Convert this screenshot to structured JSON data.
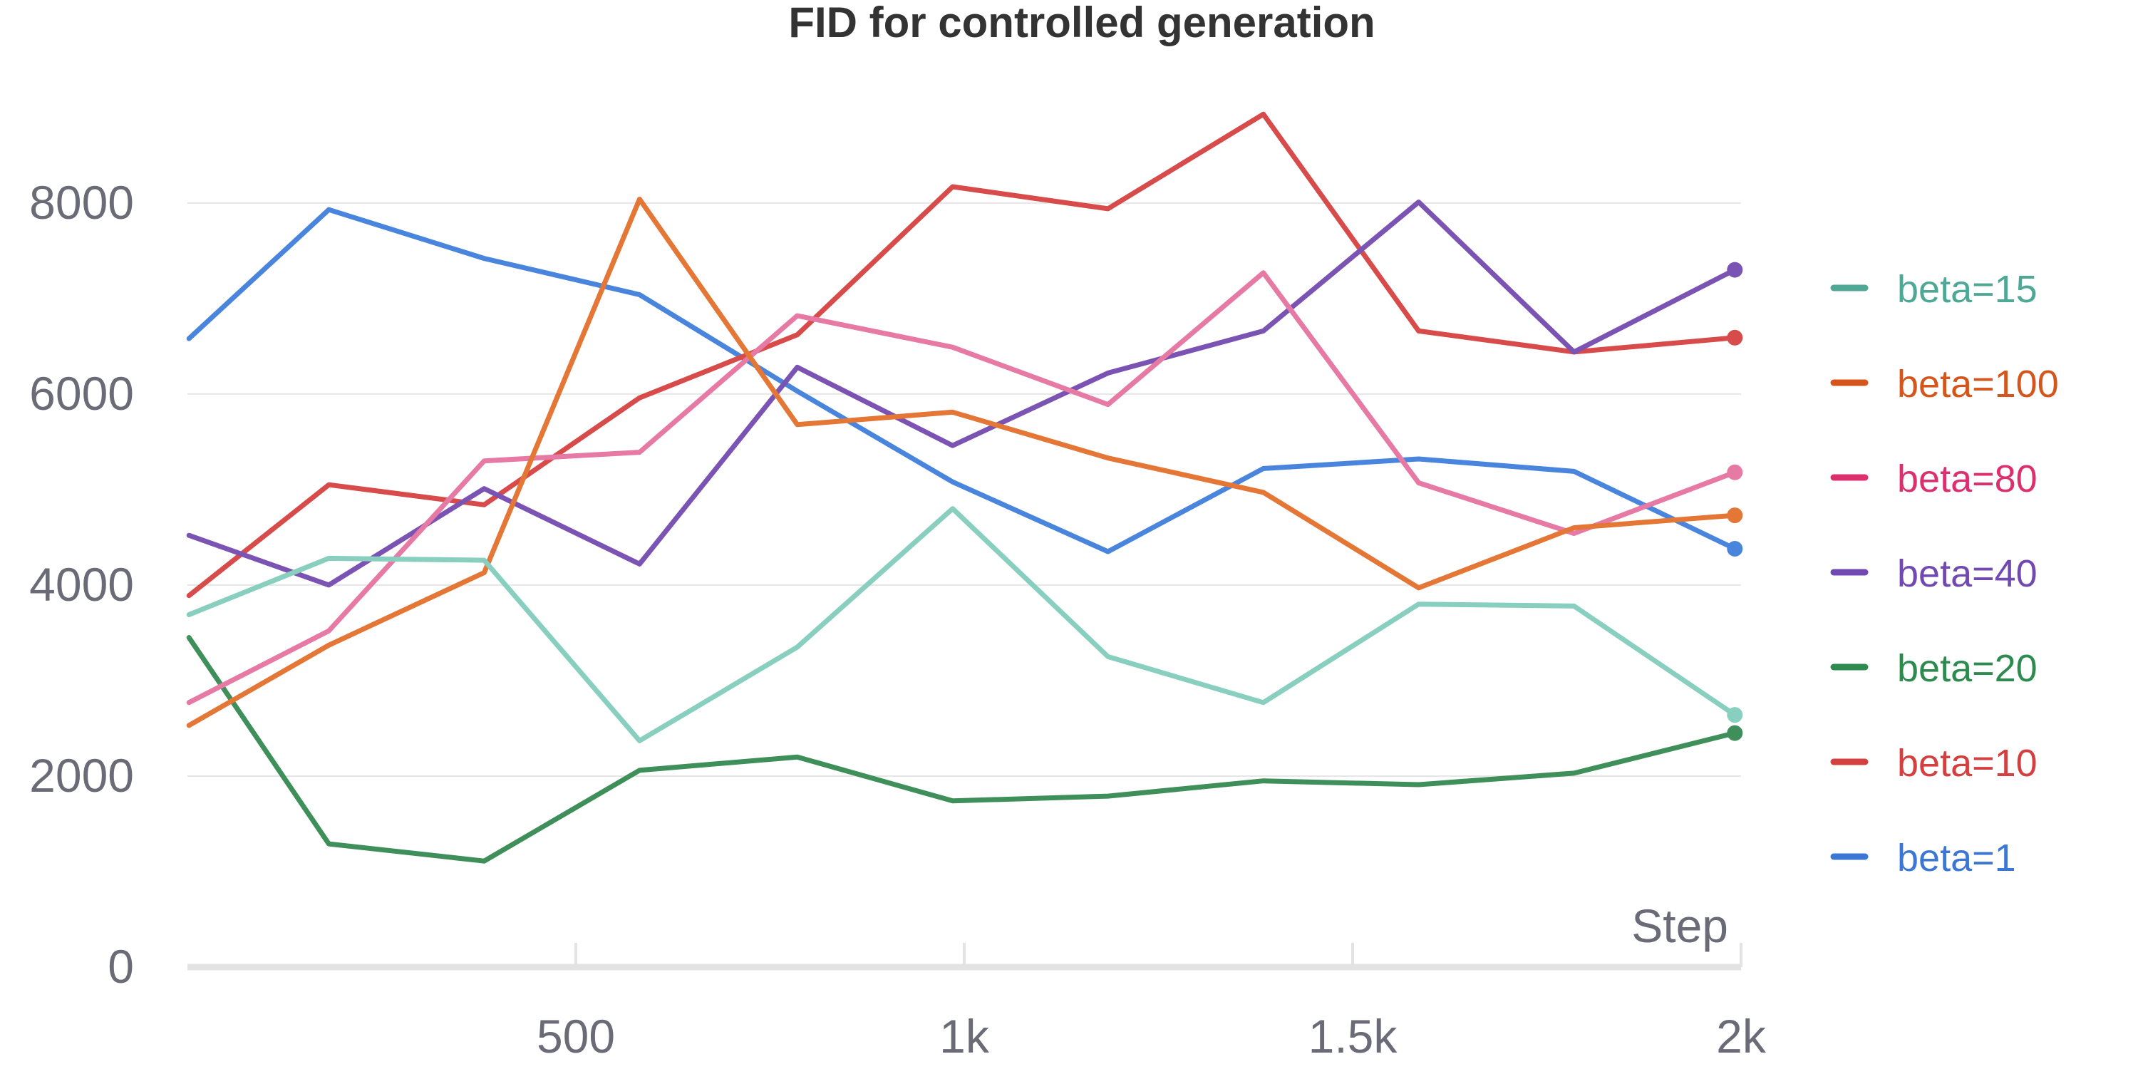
{
  "chart_data": {
    "type": "line",
    "title": "FID for controlled generation",
    "xlabel": "Step",
    "ylabel": "",
    "xlim": [
      0,
      2000
    ],
    "ylim": [
      0,
      9200
    ],
    "x_ticks": [
      {
        "value": 500,
        "label": "500"
      },
      {
        "value": 1000,
        "label": "1k"
      },
      {
        "value": 1500,
        "label": "1.5k"
      },
      {
        "value": 2000,
        "label": "2k"
      }
    ],
    "y_ticks": [
      {
        "value": 0,
        "label": "0"
      },
      {
        "value": 2000,
        "label": "2000"
      },
      {
        "value": 4000,
        "label": "4000"
      },
      {
        "value": 6000,
        "label": "6000"
      },
      {
        "value": 8000,
        "label": "8000"
      }
    ],
    "grid": "horizontal",
    "legend_position": "right",
    "x": [
      2,
      182,
      382,
      582,
      785,
      985,
      1185,
      1385,
      1585,
      1785,
      1992
    ],
    "series": [
      {
        "name": "beta=1",
        "color": "#4a85dd",
        "legend_color": "#3d77d6",
        "values": [
          6580,
          7930,
          7420,
          7040,
          6030,
          5080,
          4350,
          5220,
          5320,
          5190,
          4380
        ]
      },
      {
        "name": "beta=10",
        "color": "#d84b4b",
        "legend_color": "#d43f3f",
        "values": [
          3890,
          5050,
          4840,
          5960,
          6620,
          8170,
          7940,
          8930,
          6660,
          6440,
          6590
        ]
      },
      {
        "name": "beta=20",
        "color": "#3f8f5a",
        "legend_color": "#2e8b4f",
        "values": [
          3450,
          1290,
          1110,
          2060,
          2200,
          1740,
          1790,
          1950,
          1910,
          2030,
          2450
        ]
      },
      {
        "name": "beta=40",
        "color": "#7b53b3",
        "legend_color": "#7249b0",
        "values": [
          4520,
          4000,
          5010,
          4220,
          6280,
          5460,
          6220,
          6660,
          8010,
          6440,
          7300
        ]
      },
      {
        "name": "beta=80",
        "color": "#e67aa4",
        "legend_color": "#dc2f6e",
        "values": [
          2770,
          3520,
          5300,
          5390,
          6820,
          6490,
          5890,
          7270,
          5070,
          4540,
          5180
        ]
      },
      {
        "name": "beta=100",
        "color": "#e47636",
        "legend_color": "#d4561d",
        "values": [
          2530,
          3370,
          4130,
          8040,
          5680,
          5810,
          5330,
          4970,
          3970,
          4600,
          4730
        ]
      },
      {
        "name": "beta=15",
        "color": "#88cfc0",
        "legend_color": "#4fa896",
        "values": [
          3690,
          4280,
          4260,
          2370,
          3350,
          4800,
          3250,
          2770,
          3800,
          3780,
          2640
        ]
      }
    ],
    "legend_order": [
      "beta=15",
      "beta=100",
      "beta=80",
      "beta=40",
      "beta=20",
      "beta=10",
      "beta=1"
    ]
  }
}
